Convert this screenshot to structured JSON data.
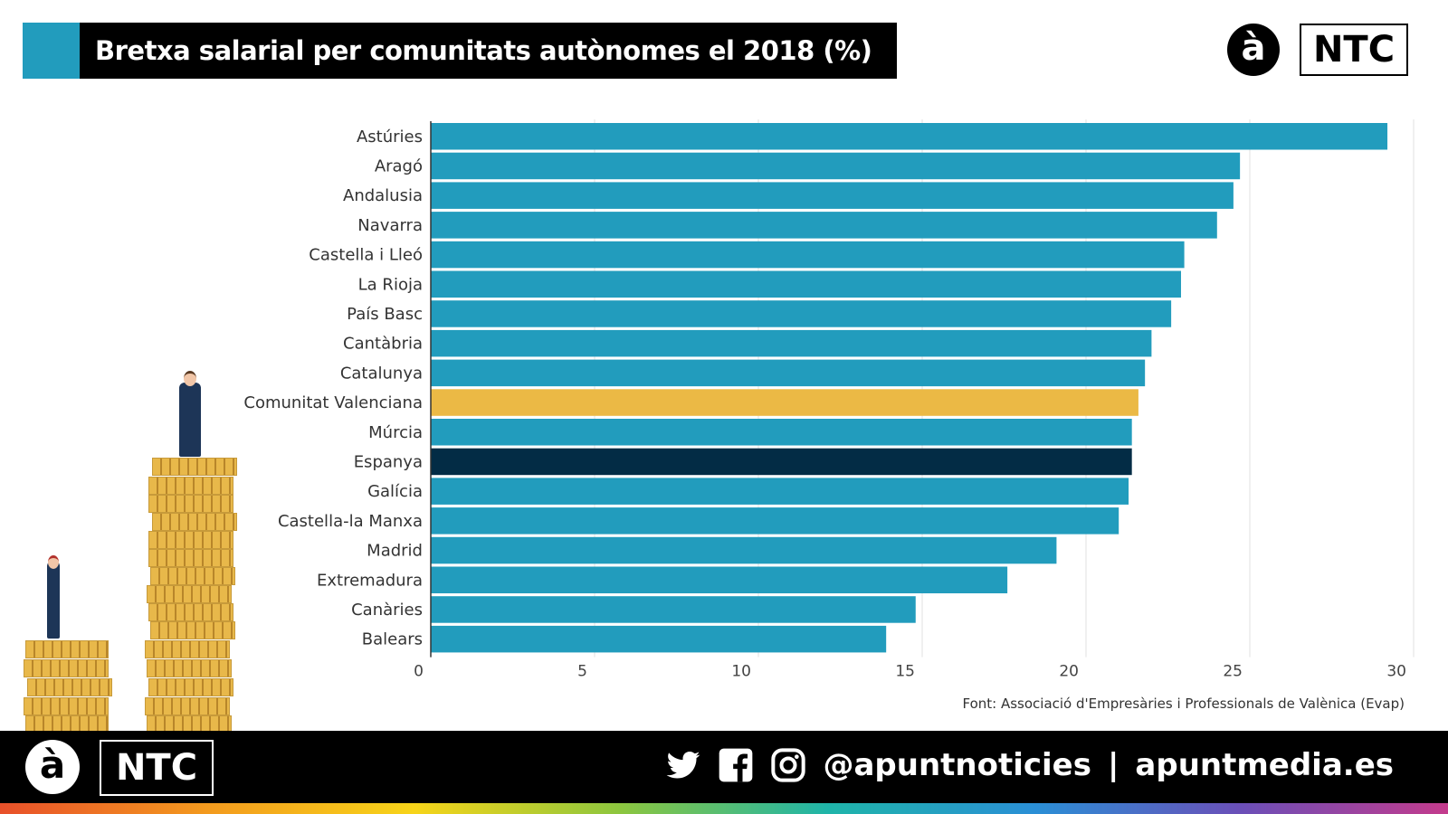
{
  "title": "Bretxa salarial per comunitats autònomes el 2018 (%)",
  "logo": {
    "a": "à",
    "ntc": "NTC"
  },
  "source": "Font: Associació d'Empresàries i Professionals de Valènica (Evap)",
  "footer": {
    "handle": "@apuntnoticies",
    "separator": "|",
    "site": "apuntmedia.es",
    "icons": [
      "twitter-icon",
      "facebook-icon",
      "instagram-icon"
    ]
  },
  "colors": {
    "bar": "#229cbd",
    "highlight": "#ebb945",
    "total": "#032c45"
  },
  "chart_data": {
    "type": "bar",
    "orientation": "horizontal",
    "title": "Bretxa salarial per comunitats autònomes el 2018 (%)",
    "categories": [
      "Astúries",
      "Aragó",
      "Andalusia",
      "Navarra",
      "Castella i Lleó",
      "La Rioja",
      "País Basc",
      "Cantàbria",
      "Catalunya",
      "Comunitat Valenciana",
      "Múrcia",
      "Espanya",
      "Galícia",
      "Castella-la Manxa",
      "Madrid",
      "Extremadura",
      "Canàries",
      "Balears"
    ],
    "values": [
      29.2,
      24.7,
      24.5,
      24.0,
      23.0,
      22.9,
      22.6,
      22.0,
      21.8,
      21.6,
      21.4,
      21.4,
      21.3,
      21.0,
      19.1,
      17.6,
      14.8,
      13.9
    ],
    "highlight": {
      "Comunitat Valenciana": "#ebb945",
      "Espanya": "#032c45"
    },
    "xlim": [
      0,
      30
    ],
    "xticks": [
      "0",
      "5",
      "10",
      "15",
      "20",
      "25",
      "30"
    ],
    "grid": true,
    "xlabel": "",
    "ylabel": ""
  }
}
